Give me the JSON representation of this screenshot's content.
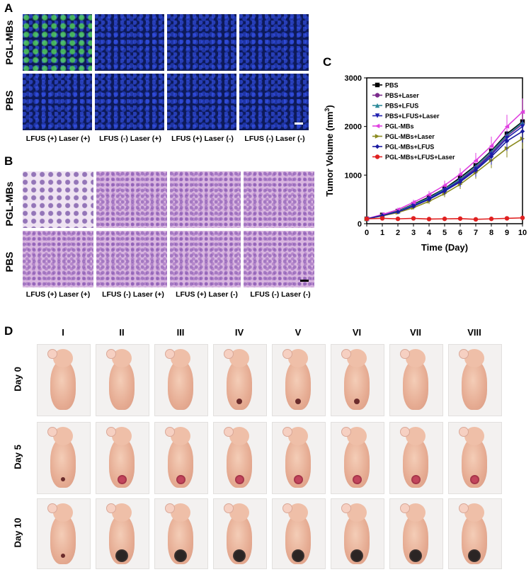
{
  "panel_labels": {
    "a": "A",
    "b": "B",
    "c": "C",
    "d": "D"
  },
  "row_labels": {
    "a": [
      "PGL-MBs",
      "PBS"
    ],
    "b": [
      "PGL-MBs",
      "PBS"
    ],
    "d": [
      "Day 0",
      "Day 5",
      "Day 10"
    ]
  },
  "condition_labels": [
    "LFUS (+) Laser (+)",
    "LFUS (-) Laser (+)",
    "LFUS (+) Laser (-)",
    "LFUS (-) Laser (-)"
  ],
  "group_numerals": [
    "I",
    "II",
    "III",
    "IV",
    "V",
    "VI",
    "VII",
    "VIII"
  ],
  "colors": {
    "fluorescence_bg": "#0d1a5a",
    "green_signal": "#5ae65a",
    "he_stain": "#d9b6e0"
  },
  "chart_data": {
    "type": "line",
    "xlabel": "Time (Day)",
    "ylabel": "Tumor Volume (mm3)",
    "x": [
      0,
      1,
      2,
      3,
      4,
      5,
      6,
      7,
      8,
      9,
      10
    ],
    "xticks": [
      "0",
      "1",
      "2",
      "3",
      "4",
      "5",
      "6",
      "7",
      "8",
      "9",
      "10"
    ],
    "yticks": [
      "0",
      "1000",
      "2000",
      "3000"
    ],
    "xlim": [
      0,
      10
    ],
    "ylim": [
      0,
      3000
    ],
    "legend_position": "top-left",
    "series": [
      {
        "name": "PBS",
        "color": "#000000",
        "marker": "square",
        "values": [
          100,
          180,
          260,
          400,
          550,
          720,
          950,
          1200,
          1500,
          1850,
          2100
        ]
      },
      {
        "name": "PBS+Laser",
        "color": "#7b2b8c",
        "marker": "circle",
        "values": [
          100,
          170,
          250,
          380,
          520,
          700,
          900,
          1150,
          1450,
          1800,
          2050
        ]
      },
      {
        "name": "PBS+LFUS",
        "color": "#2e8b9a",
        "marker": "triangle-up",
        "values": [
          100,
          175,
          255,
          390,
          530,
          710,
          920,
          1180,
          1480,
          1820,
          2080
        ]
      },
      {
        "name": "PBS+LFUS+Laser",
        "color": "#2020b0",
        "marker": "triangle-down",
        "values": [
          100,
          160,
          240,
          370,
          510,
          690,
          880,
          1120,
          1420,
          1760,
          2000
        ]
      },
      {
        "name": "PGL-MBs",
        "color": "#e040e0",
        "marker": "triangle-left",
        "values": [
          100,
          190,
          290,
          440,
          600,
          790,
          1020,
          1300,
          1600,
          2000,
          2300
        ]
      },
      {
        "name": "PGL-MBs+Laser",
        "color": "#8a8a1e",
        "marker": "triangle-right",
        "values": [
          100,
          160,
          230,
          330,
          460,
          620,
          810,
          1050,
          1300,
          1550,
          1750
        ]
      },
      {
        "name": "PGL-MBs+LFUS",
        "color": "#1a1aa0",
        "marker": "diamond",
        "values": [
          100,
          170,
          245,
          360,
          500,
          670,
          860,
          1100,
          1380,
          1700,
          1900
        ]
      },
      {
        "name": "PGL-MBs+LFUS+Laser",
        "color": "#e02020",
        "marker": "circle",
        "values": [
          100,
          110,
          100,
          110,
          95,
          100,
          105,
          90,
          100,
          110,
          120
        ]
      }
    ]
  }
}
